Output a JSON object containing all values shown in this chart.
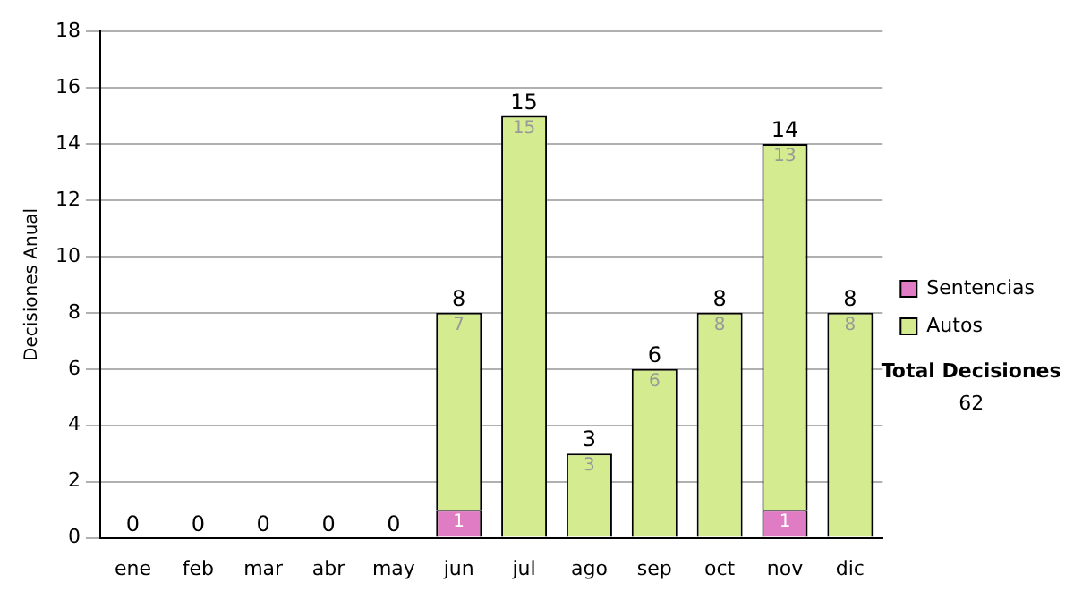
{
  "chart_data": {
    "type": "bar",
    "stacked": true,
    "ylabel": "Decisiones Anual",
    "categories": [
      "ene",
      "feb",
      "mar",
      "abr",
      "may",
      "jun",
      "jul",
      "ago",
      "sep",
      "oct",
      "nov",
      "dic"
    ],
    "series": [
      {
        "name": "Sentencias",
        "color": "#e07cc4",
        "values": [
          0,
          0,
          0,
          0,
          0,
          1,
          0,
          0,
          0,
          0,
          1,
          0
        ],
        "value_labels": [
          null,
          null,
          null,
          null,
          null,
          "1",
          null,
          null,
          null,
          null,
          "1",
          null
        ]
      },
      {
        "name": "Autos",
        "color": "#d4eb8f",
        "values": [
          0,
          0,
          0,
          0,
          0,
          7,
          15,
          3,
          6,
          8,
          13,
          8
        ],
        "value_labels": [
          null,
          null,
          null,
          null,
          null,
          "7",
          "15",
          "3",
          "6",
          "8",
          "13",
          "8"
        ]
      }
    ],
    "totals": [
      "0",
      "0",
      "0",
      "0",
      "0",
      "8",
      "15",
      "3",
      "6",
      "8",
      "14",
      "8"
    ],
    "ylim": [
      0,
      18
    ],
    "yticks": [
      0,
      2,
      4,
      6,
      8,
      10,
      12,
      14,
      16,
      18
    ],
    "grid": "y",
    "legend": "right",
    "annotations": [
      "Total Decisiones",
      "62"
    ]
  }
}
